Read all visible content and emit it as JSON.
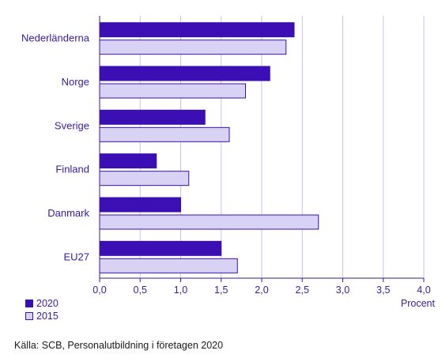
{
  "chart_data": {
    "type": "bar",
    "orientation": "horizontal",
    "categories": [
      "Nederländerna",
      "Norge",
      "Sverige",
      "Finland",
      "Danmark",
      "EU27"
    ],
    "series": [
      {
        "name": "2020",
        "values": [
          2.4,
          2.1,
          1.3,
          0.7,
          1.0,
          1.5
        ],
        "color": "#3c0fb4",
        "border": "#3c0fb4"
      },
      {
        "name": "2015",
        "values": [
          2.3,
          1.8,
          1.6,
          1.1,
          2.7,
          1.7
        ],
        "color": "#d8d2f4",
        "border": "#3c0fb4"
      }
    ],
    "xticks": [
      "0,0",
      "0,5",
      "1,0",
      "1,5",
      "2,0",
      "2,5",
      "3,0",
      "3,5",
      "4,0"
    ],
    "xlim": [
      0,
      4
    ],
    "xlabel": "Procent",
    "grid": true,
    "legend_position": "bottom-left"
  },
  "legend": [
    {
      "label": "2020",
      "color": "#3c0fb4",
      "border": "#3c0fb4"
    },
    {
      "label": "2015",
      "color": "#d8d2f4",
      "border": "#3c0fb4"
    }
  ],
  "source": "Källa: SCB, Personalutbildning i företagen 2020"
}
